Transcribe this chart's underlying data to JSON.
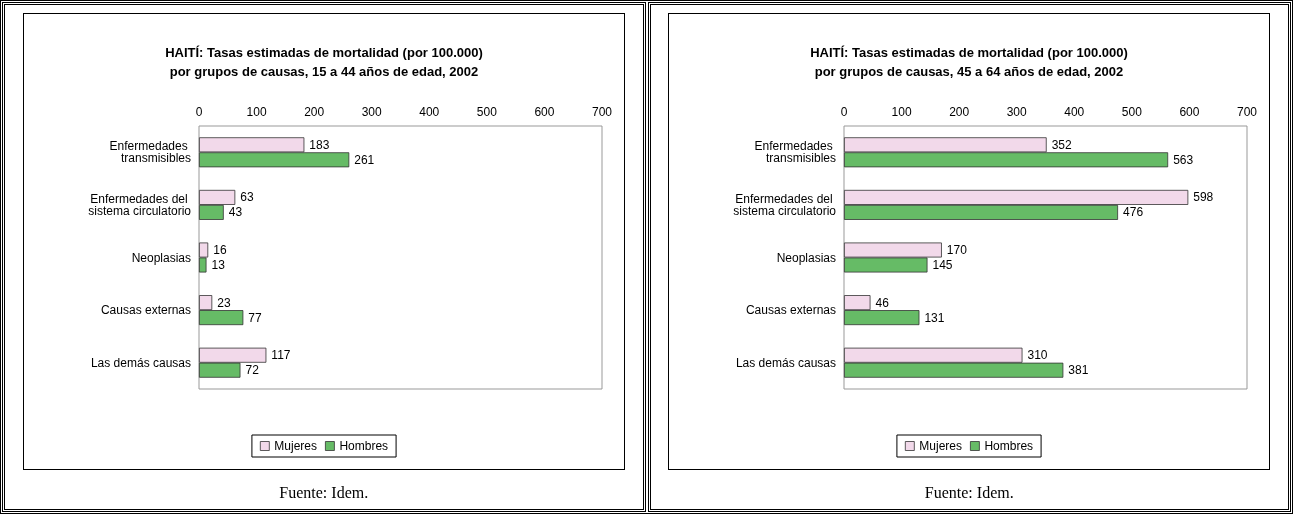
{
  "chart_data": [
    {
      "type": "bar",
      "orientation": "horizontal",
      "title": "HAITÍ: Tasas estimadas de mortalidad (por 100.000)\npor grupos de causas, 15 a 44 años de edad, 2002",
      "categories": [
        "Enfermedades transmisibles",
        "Enfermedades del sistema circulatorio",
        "Neoplasias",
        "Causas externas",
        "Las demás causas"
      ],
      "series": [
        {
          "name": "Mujeres",
          "color": "#f2d9ea",
          "values": [
            183,
            63,
            16,
            23,
            117
          ]
        },
        {
          "name": "Hombres",
          "color": "#66bb66",
          "values": [
            261,
            43,
            13,
            77,
            72
          ]
        }
      ],
      "xlim": [
        0,
        700
      ],
      "xticks": [
        0,
        100,
        200,
        300,
        400,
        500,
        600,
        700
      ],
      "data_labels": true,
      "grid": false,
      "legend": "bottom",
      "annotations": [
        "Fuente: Idem."
      ]
    },
    {
      "type": "bar",
      "orientation": "horizontal",
      "title": "HAITÍ: Tasas estimadas de mortalidad (por 100.000)\npor grupos de causas, 45 a 64 años de edad, 2002",
      "categories": [
        "Enfermedades transmisibles",
        "Enfermedades del sistema circulatorio",
        "Neoplasias",
        "Causas externas",
        "Las demás causas"
      ],
      "series": [
        {
          "name": "Mujeres",
          "color": "#f2d9ea",
          "values": [
            352,
            598,
            170,
            46,
            310
          ]
        },
        {
          "name": "Hombres",
          "color": "#66bb66",
          "values": [
            563,
            476,
            145,
            131,
            381
          ]
        }
      ],
      "xlim": [
        0,
        700
      ],
      "xticks": [
        0,
        100,
        200,
        300,
        400,
        500,
        600,
        700
      ],
      "data_labels": true,
      "grid": false,
      "legend": "bottom",
      "annotations": [
        "Fuente: Idem."
      ]
    }
  ]
}
